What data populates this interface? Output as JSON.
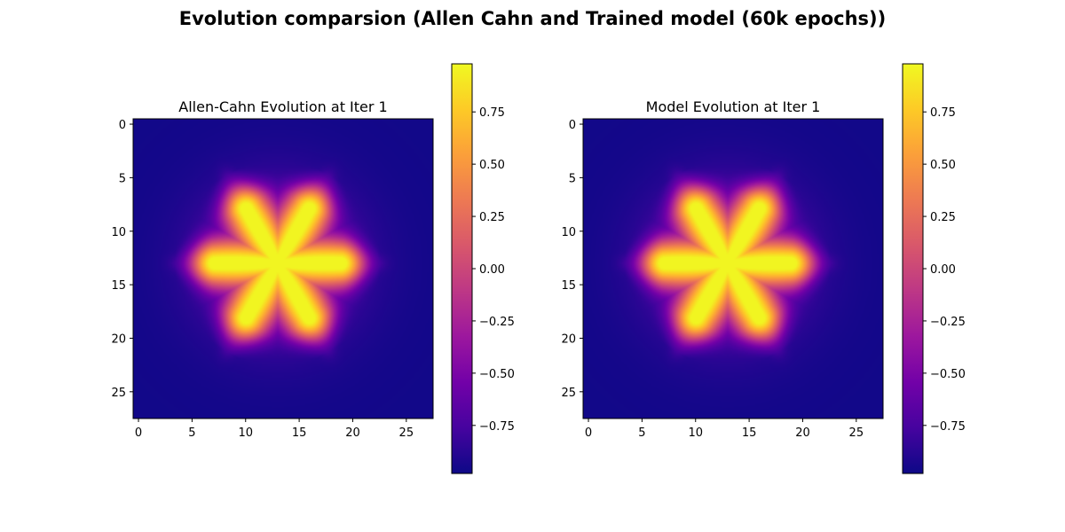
{
  "figure": {
    "suptitle": "Evolution comparsion (Allen Cahn and Trained model (60k epochs))"
  },
  "colormap": {
    "name": "plasma",
    "stops": [
      "#0d0887",
      "#46039f",
      "#7201a8",
      "#9c179e",
      "#bd3786",
      "#d8576b",
      "#ed7953",
      "#fb9f3a",
      "#fdca26",
      "#f0f921"
    ]
  },
  "chart_data": [
    {
      "type": "heatmap",
      "title": "Allen-Cahn Evolution at Iter 1",
      "grid_size": [
        28,
        28
      ],
      "field": "six-petal star: six elongated lobes centered at (13, 13), petals along horizontal axis and ±60° directions, petal length ≈ 9.5, petal half-width ≈ 1.6",
      "value_range": [
        -1.0,
        1.0
      ],
      "xlim": [
        -0.5,
        27.5
      ],
      "ylim": [
        27.5,
        -0.5
      ],
      "x_ticks": [
        0,
        5,
        10,
        15,
        20,
        25
      ],
      "y_ticks": [
        0,
        5,
        10,
        15,
        20,
        25
      ],
      "colorbar": {
        "range": [
          -0.98,
          0.98
        ],
        "ticks": [
          -0.75,
          -0.5,
          -0.25,
          0.0,
          0.25,
          0.5,
          0.75
        ],
        "tick_labels": [
          "−0.75",
          "−0.50",
          "−0.25",
          "0.00",
          "0.25",
          "0.50",
          "0.75"
        ]
      }
    },
    {
      "type": "heatmap",
      "title": "Model Evolution at Iter 1",
      "grid_size": [
        28,
        28
      ],
      "field": "six-petal star: six elongated lobes centered at (13, 13), petals along horizontal axis and ±60° directions, petal length ≈ 9.5, petal half-width ≈ 1.6",
      "value_range": [
        -1.0,
        1.0
      ],
      "xlim": [
        -0.5,
        27.5
      ],
      "ylim": [
        27.5,
        -0.5
      ],
      "x_ticks": [
        0,
        5,
        10,
        15,
        20,
        25
      ],
      "y_ticks": [
        0,
        5,
        10,
        15,
        20,
        25
      ],
      "colorbar": {
        "range": [
          -0.98,
          0.98
        ],
        "ticks": [
          -0.75,
          -0.5,
          -0.25,
          0.0,
          0.25,
          0.5,
          0.75
        ],
        "tick_labels": [
          "−0.75",
          "−0.50",
          "−0.25",
          "0.00",
          "0.25",
          "0.50",
          "0.75"
        ]
      }
    }
  ]
}
